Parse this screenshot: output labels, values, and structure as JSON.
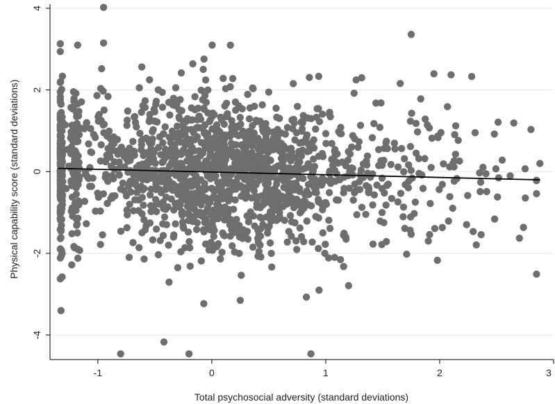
{
  "chart_data": {
    "type": "scatter",
    "title": "",
    "xlabel": "Total psychosocial adversity (standard deviations)",
    "ylabel": "Physical capability score (standard deviations)",
    "xlim": [
      -1.42,
      3.0
    ],
    "ylim": [
      -4.6,
      4.1
    ],
    "xticks": [
      -1,
      0,
      1,
      2,
      3
    ],
    "yticks": [
      -4,
      -2,
      0,
      2,
      4
    ],
    "grid": "horizontal",
    "legend": "none",
    "point_color": "#6e6e6e",
    "line_color": "#000000",
    "fit_line": {
      "x": [
        -1.35,
        2.88
      ],
      "y": [
        0.08,
        -0.2
      ]
    },
    "notable_points": {
      "x": [
        -0.95,
        -1.33,
        -1.33,
        -0.95,
        1.75,
        2.1,
        2.48,
        2.88,
        2.7,
        -0.8,
        -0.42,
        -0.2,
        0.87,
        0.83,
        -0.07,
        0.25,
        1.2,
        1.9,
        1.98,
        2.75
      ],
      "y": [
        4.02,
        3.13,
        2.94,
        3.15,
        3.36,
        2.37,
        0.92,
        0.2,
        -1.63,
        -4.46,
        -4.17,
        -4.46,
        -4.46,
        -3.07,
        -3.23,
        -3.15,
        -2.79,
        -1.7,
        -2.17,
        0.07
      ]
    },
    "point_count": 1700
  }
}
